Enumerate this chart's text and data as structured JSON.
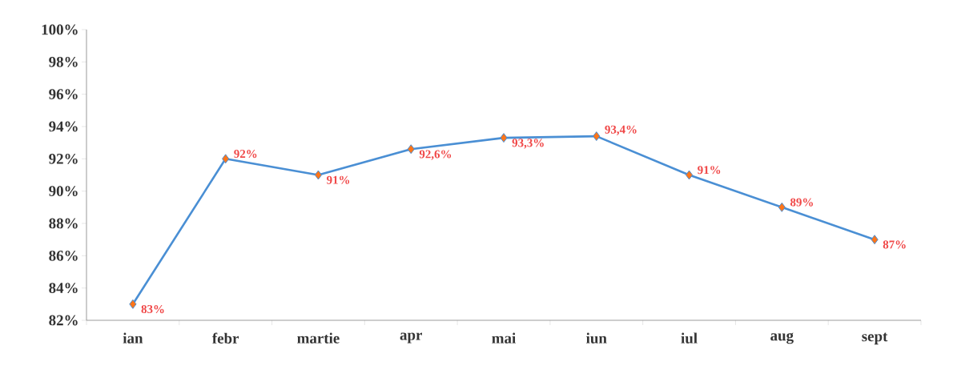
{
  "chart_data": {
    "type": "line",
    "categories": [
      "ian",
      "febr",
      "martie",
      "apr",
      "mai",
      "iun",
      "iul",
      "aug",
      "sept"
    ],
    "series": [
      {
        "color": "#4a8fd4",
        "values": [
          83,
          92,
          91,
          92.6,
          93.3,
          93.4,
          91,
          89,
          87
        ],
        "value_labels": [
          "83%",
          "92%",
          "91%",
          "92,6%",
          "93,3%",
          "93,4%",
          "91%",
          "89%",
          "87%"
        ]
      }
    ],
    "ylim": [
      82,
      100
    ],
    "yticks": [
      {
        "value": 82,
        "label": "82%"
      },
      {
        "value": 84,
        "label": "84%"
      },
      {
        "value": 86,
        "label": "86%"
      },
      {
        "value": 88,
        "label": "88%"
      },
      {
        "value": 90,
        "label": "90%"
      },
      {
        "value": 92,
        "label": "92%"
      },
      {
        "value": 94,
        "label": "94%"
      },
      {
        "value": 96,
        "label": "96%"
      },
      {
        "value": 98,
        "label": "98%"
      },
      {
        "value": 100,
        "label": "100%"
      }
    ],
    "marker": "diamond",
    "line_style": "solid",
    "grid": false,
    "legend": false
  }
}
